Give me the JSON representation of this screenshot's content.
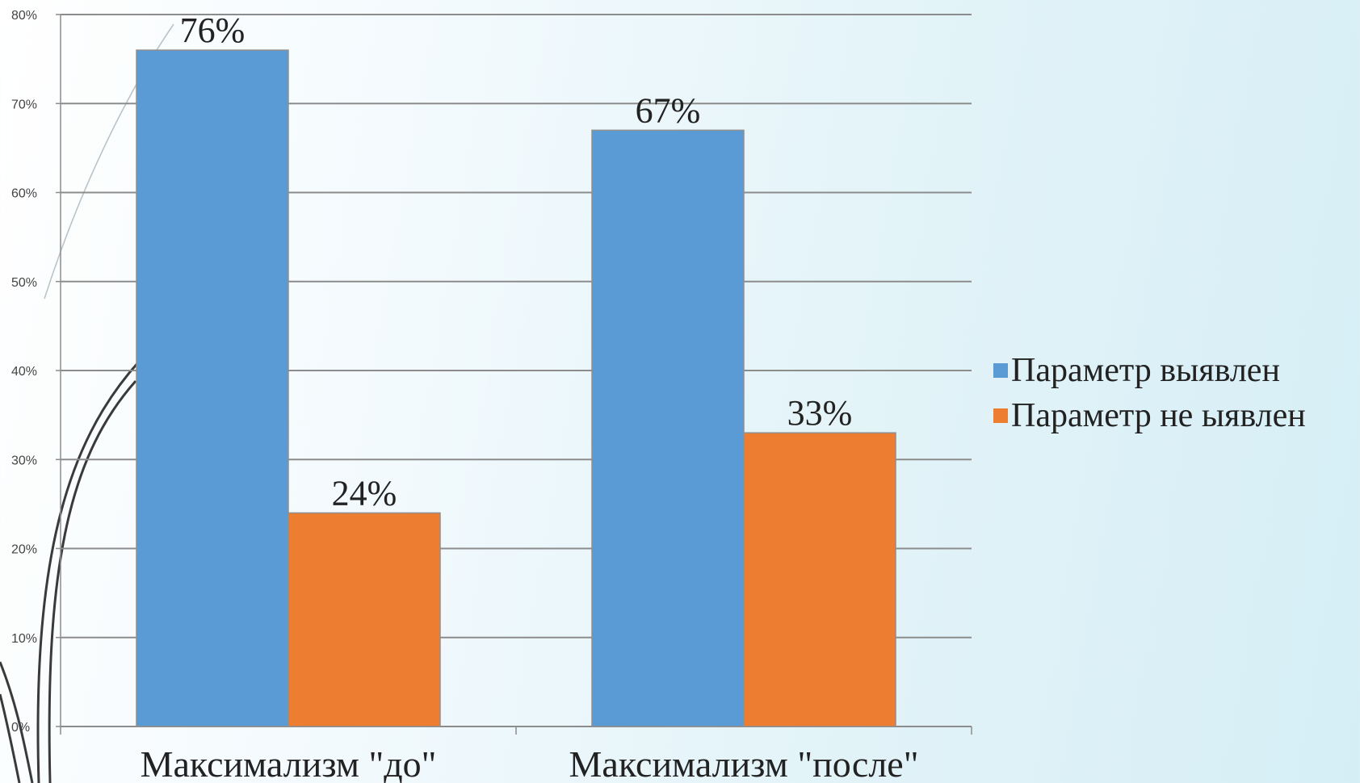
{
  "chart_data": {
    "type": "bar",
    "categories": [
      "Максимализм \"до\"",
      "Максимализм \"после\""
    ],
    "series": [
      {
        "name": "Параметр выявлен",
        "values": [
          76,
          67
        ],
        "labels": [
          "76%",
          "67%"
        ],
        "color": "#5b9bd5"
      },
      {
        "name": "Параметр не ыявлен",
        "values": [
          24,
          33
        ],
        "labels": [
          "24%",
          "33%"
        ],
        "color": "#ed7d31"
      }
    ],
    "yticks": [
      "0%",
      "10%",
      "20%",
      "30%",
      "40%",
      "50%",
      "60%",
      "70%",
      "80%"
    ],
    "ylim": [
      0,
      80
    ],
    "grid": true,
    "legend_position": "right",
    "title": "",
    "xlabel": "",
    "ylabel": ""
  }
}
